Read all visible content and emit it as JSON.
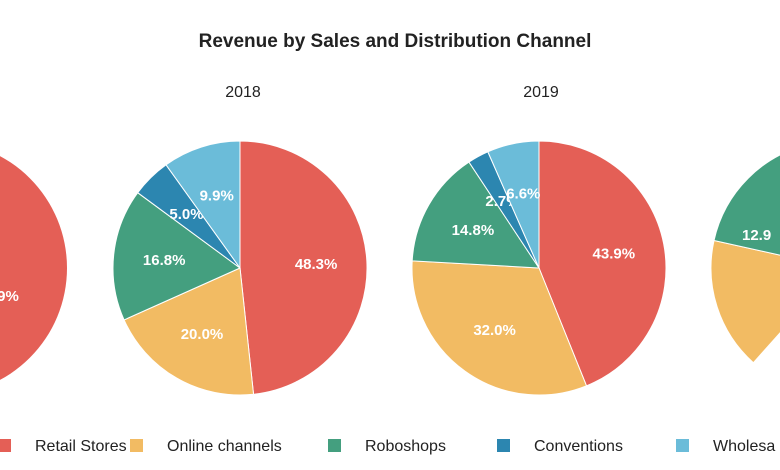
{
  "chart_data": {
    "type": "pie",
    "title": "Revenue by Sales and Distribution Channel",
    "colors": {
      "Retail Stores": "#e45f56",
      "Online channels": "#f2bb63",
      "Roboshops": "#449f7f",
      "Conventions": "#2c86b0",
      "Wholesale": "#6bbcd9"
    },
    "legend": {
      "placement": "bottom",
      "items": [
        "Retail Stores",
        "Online channels",
        "Roboshops",
        "Conventions",
        "Wholesa"
      ]
    },
    "pies": [
      {
        "title": "",
        "slices": [
          {
            "category": "Retail Stores",
            "label": "9%",
            "value": null
          }
        ]
      },
      {
        "title": "2018",
        "slices": [
          {
            "category": "Retail Stores",
            "label": "48.3%",
            "value": 48.3
          },
          {
            "category": "Online channels",
            "label": "20.0%",
            "value": 20.0
          },
          {
            "category": "Roboshops",
            "label": "16.8%",
            "value": 16.8
          },
          {
            "category": "Conventions",
            "label": "5.0%",
            "value": 5.0
          },
          {
            "category": "Wholesale",
            "label": "9.9%",
            "value": 9.9
          }
        ]
      },
      {
        "title": "2019",
        "slices": [
          {
            "category": "Retail Stores",
            "label": "43.9%",
            "value": 43.9
          },
          {
            "category": "Online channels",
            "label": "32.0%",
            "value": 32.0
          },
          {
            "category": "Roboshops",
            "label": "14.8%",
            "value": 14.8
          },
          {
            "category": "Conventions",
            "label": "2.7%",
            "value": 2.7
          },
          {
            "category": "Wholesale",
            "label": "6.6%",
            "value": 6.6
          }
        ]
      },
      {
        "title": "",
        "slices": [
          {
            "category": "Roboshops",
            "label": "12.9",
            "value": 12.9
          }
        ]
      }
    ]
  }
}
